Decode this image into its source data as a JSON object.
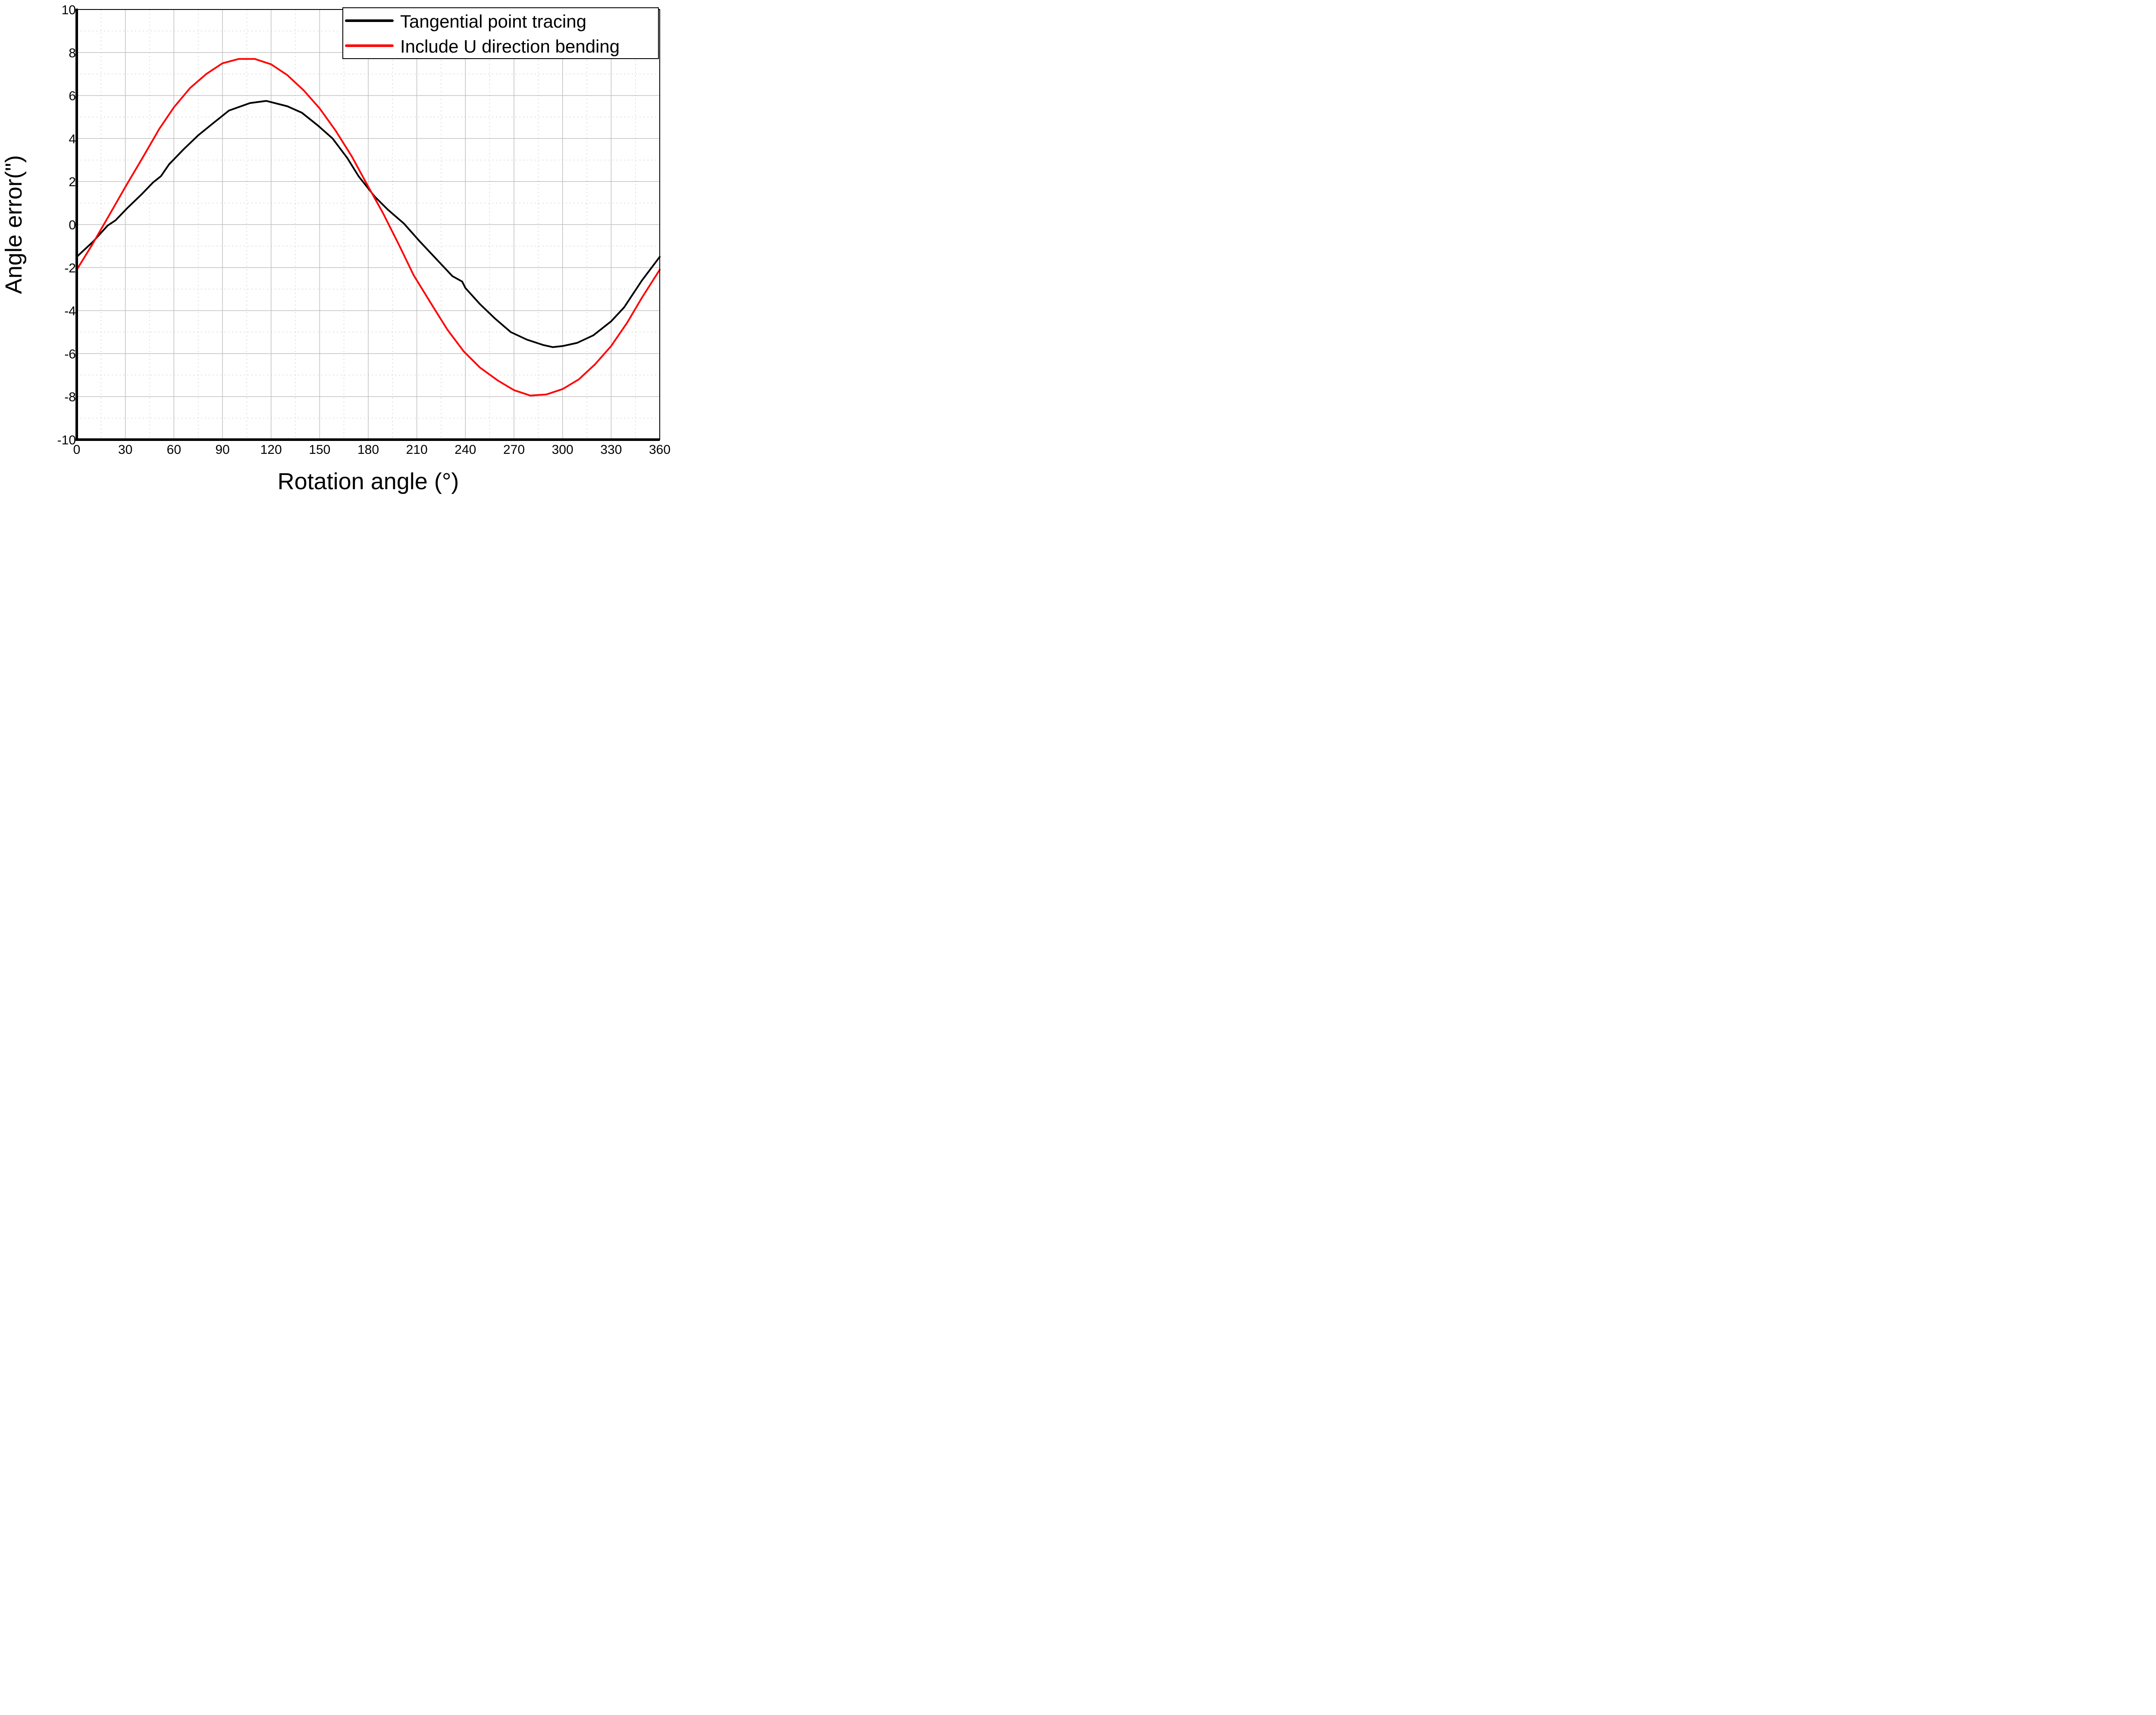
{
  "chart_data": {
    "type": "line",
    "title": "",
    "xlabel": "Rotation angle (°)",
    "ylabel": "Angle error(\")",
    "xlim": [
      0,
      360
    ],
    "ylim": [
      -10,
      10
    ],
    "x_ticks": [
      0,
      30,
      60,
      90,
      120,
      150,
      180,
      210,
      240,
      270,
      300,
      330,
      360
    ],
    "x_tick_labels": [
      "0",
      "30",
      "60",
      "90",
      "120",
      "150",
      "180",
      "210",
      "240",
      "270",
      "300",
      "330",
      "360"
    ],
    "y_ticks": [
      -10,
      -8,
      -6,
      -4,
      -2,
      0,
      2,
      4,
      6,
      8,
      10
    ],
    "y_tick_labels": [
      "-10",
      "-8",
      "-6",
      "-4",
      "-2",
      "0",
      "2",
      "4",
      "6",
      "8",
      "10"
    ],
    "x_minor_step": 15,
    "y_minor_step": 1,
    "grid": true,
    "legend_position": "top-right",
    "series": [
      {
        "name": "Tangential point tracing",
        "color": "#000000",
        "x": [
          0,
          10,
          19,
          24,
          31,
          40,
          47,
          52,
          57,
          66,
          75,
          84,
          94,
          107,
          117,
          130,
          139,
          149,
          158,
          167,
          174,
          184,
          192,
          202,
          212,
          222,
          232,
          238,
          240,
          249,
          258,
          268,
          278,
          288,
          294,
          300,
          309,
          319,
          330,
          338,
          349,
          360
        ],
        "values": [
          -1.5,
          -0.8,
          -0.05,
          0.2,
          0.75,
          1.4,
          1.95,
          2.25,
          2.8,
          3.5,
          4.15,
          4.7,
          5.3,
          5.65,
          5.75,
          5.5,
          5.2,
          4.6,
          4.0,
          3.1,
          2.25,
          1.3,
          0.7,
          0.05,
          -0.8,
          -1.6,
          -2.4,
          -2.65,
          -2.95,
          -3.7,
          -4.35,
          -5.0,
          -5.35,
          -5.6,
          -5.7,
          -5.65,
          -5.5,
          -5.15,
          -4.5,
          -3.85,
          -2.6,
          -1.5
        ]
      },
      {
        "name": "Include U direction bending",
        "color": "#ff0000",
        "x": [
          0,
          9,
          19,
          30,
          41,
          51,
          60,
          70,
          80,
          90,
          100,
          110,
          120,
          130,
          140,
          150,
          160,
          170,
          179,
          189,
          199,
          208,
          219,
          229,
          239,
          249,
          260,
          270,
          280,
          290,
          300,
          310,
          320,
          330,
          340,
          349,
          360
        ],
        "values": [
          -2.1,
          -1.0,
          0.3,
          1.75,
          3.15,
          4.45,
          5.45,
          6.35,
          7.0,
          7.5,
          7.7,
          7.7,
          7.45,
          6.95,
          6.25,
          5.4,
          4.35,
          3.15,
          1.9,
          0.55,
          -0.95,
          -2.35,
          -3.7,
          -4.9,
          -5.9,
          -6.65,
          -7.25,
          -7.7,
          -7.95,
          -7.9,
          -7.65,
          -7.2,
          -6.5,
          -5.65,
          -4.55,
          -3.4,
          -2.1
        ]
      }
    ]
  }
}
